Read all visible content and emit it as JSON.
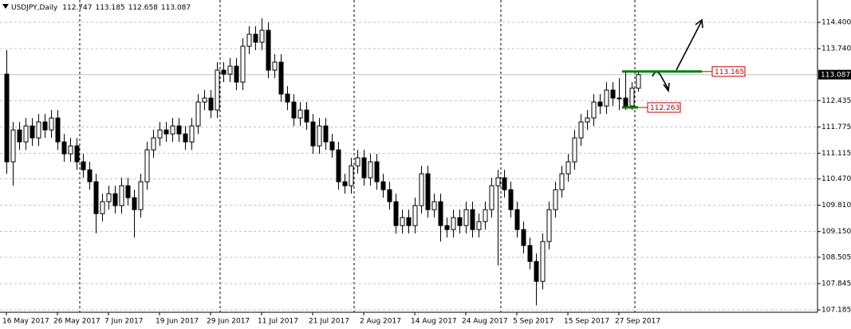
{
  "chart_data": {
    "type": "candlestick",
    "title": "USDJPY,Daily",
    "categories": [
      "16 May 2017",
      null,
      null,
      null,
      null,
      null,
      null,
      null,
      "26 May 2017",
      null,
      null,
      null,
      null,
      null,
      null,
      null,
      "7 Jun 2017",
      null,
      null,
      null,
      null,
      null,
      null,
      null,
      "19 Jun 2017",
      null,
      null,
      null,
      null,
      null,
      null,
      null,
      "29 Jun 2017",
      null,
      null,
      null,
      null,
      null,
      null,
      null,
      "11 Jul 2017",
      null,
      null,
      null,
      null,
      null,
      null,
      null,
      "21 Jul 2017",
      null,
      null,
      null,
      null,
      null,
      null,
      null,
      "2 Aug 2017",
      null,
      null,
      null,
      null,
      null,
      null,
      null,
      "14 Aug 2017",
      null,
      null,
      null,
      null,
      null,
      null,
      null,
      "24 Aug 2017",
      null,
      null,
      null,
      null,
      null,
      null,
      null,
      "5 Sep 2017",
      null,
      null,
      null,
      null,
      null,
      null,
      null,
      "15 Sep 2017",
      null,
      null,
      null,
      null,
      null,
      null,
      null,
      "27 Sep 2017",
      null,
      null,
      null
    ],
    "open": [
      113.1,
      110.9,
      111.7,
      111.4,
      111.8,
      111.5,
      111.9,
      111.7,
      112.0,
      111.4,
      111.1,
      111.3,
      110.9,
      110.7,
      110.4,
      109.6,
      109.9,
      110.1,
      109.8,
      110.3,
      110.0,
      109.7,
      110.4,
      111.2,
      111.5,
      111.7,
      111.6,
      111.8,
      111.6,
      111.4,
      111.8,
      112.4,
      112.5,
      112.2,
      113.2,
      113.1,
      113.3,
      112.9,
      113.8,
      114.1,
      113.9,
      114.2,
      113.2,
      113.4,
      112.6,
      112.4,
      112.0,
      112.2,
      111.9,
      111.3,
      111.8,
      111.4,
      111.2,
      110.4,
      110.3,
      110.8,
      111.0,
      110.5,
      110.9,
      110.4,
      110.2,
      109.9,
      109.3,
      109.5,
      109.3,
      109.8,
      110.6,
      109.7,
      109.9,
      109.3,
      109.2,
      109.5,
      109.3,
      109.7,
      109.2,
      109.4,
      109.7,
      110.3,
      110.5,
      110.2,
      109.7,
      109.2,
      108.8,
      108.4,
      107.9,
      108.9,
      109.7,
      110.2,
      110.6,
      110.9,
      111.5,
      111.9,
      112.0,
      112.4,
      112.3,
      112.7,
      112.5,
      112.5,
      112.3,
      112.747
    ],
    "high": [
      113.7,
      111.9,
      111.9,
      112.0,
      112.0,
      112.1,
      112.1,
      112.2,
      112.2,
      111.6,
      111.5,
      111.5,
      111.1,
      110.9,
      110.6,
      110.1,
      110.3,
      110.3,
      110.5,
      110.5,
      110.2,
      110.6,
      111.4,
      111.7,
      111.9,
      111.9,
      112.0,
      112.0,
      111.8,
      112.0,
      112.6,
      112.7,
      112.7,
      113.4,
      113.4,
      113.5,
      113.5,
      114.0,
      114.3,
      114.3,
      114.5,
      114.4,
      113.6,
      113.6,
      112.8,
      112.6,
      112.4,
      112.4,
      112.1,
      112.0,
      112.0,
      111.6,
      111.4,
      110.6,
      111.0,
      111.2,
      111.2,
      111.1,
      111.1,
      110.6,
      110.4,
      110.1,
      109.7,
      109.7,
      110.0,
      110.8,
      110.8,
      110.1,
      110.1,
      109.5,
      109.7,
      109.7,
      109.9,
      109.9,
      109.6,
      109.9,
      110.5,
      110.7,
      110.7,
      110.4,
      109.9,
      109.4,
      109.0,
      108.6,
      109.1,
      109.9,
      110.4,
      110.8,
      111.1,
      111.7,
      112.1,
      112.2,
      112.6,
      112.6,
      112.9,
      112.9,
      113.0,
      113.2,
      112.9,
      113.185
    ],
    "low": [
      110.6,
      110.3,
      111.2,
      111.2,
      111.3,
      111.3,
      111.5,
      111.5,
      111.2,
      110.9,
      110.9,
      110.7,
      110.5,
      110.2,
      109.1,
      109.4,
      109.7,
      109.6,
      109.6,
      109.8,
      109.0,
      109.5,
      110.2,
      111.0,
      111.3,
      111.4,
      111.4,
      111.4,
      111.2,
      111.2,
      111.6,
      112.2,
      112.0,
      112.0,
      112.9,
      112.9,
      112.7,
      112.7,
      113.6,
      113.7,
      113.7,
      113.0,
      113.0,
      112.4,
      112.2,
      111.8,
      111.8,
      111.7,
      111.1,
      111.1,
      111.2,
      111.0,
      110.2,
      110.1,
      110.1,
      110.6,
      110.3,
      110.3,
      110.2,
      110.0,
      109.7,
      109.1,
      109.1,
      109.1,
      109.1,
      109.6,
      109.5,
      109.5,
      108.9,
      109.0,
      109.0,
      109.1,
      109.1,
      109.0,
      109.0,
      109.2,
      109.5,
      108.3,
      110.0,
      109.5,
      109.0,
      108.6,
      108.2,
      107.3,
      107.7,
      108.7,
      109.5,
      110.0,
      110.4,
      110.7,
      111.3,
      111.7,
      111.8,
      112.1,
      112.1,
      112.3,
      112.2,
      112.2,
      112.2,
      112.658
    ],
    "close": [
      110.9,
      111.7,
      111.4,
      111.8,
      111.5,
      111.9,
      111.7,
      112.0,
      111.4,
      111.1,
      111.3,
      110.9,
      110.7,
      110.4,
      109.6,
      109.9,
      110.1,
      109.8,
      110.3,
      110.0,
      109.7,
      110.4,
      111.2,
      111.5,
      111.7,
      111.6,
      111.8,
      111.6,
      111.4,
      111.8,
      112.4,
      112.5,
      112.2,
      113.2,
      113.1,
      113.3,
      112.9,
      113.8,
      114.1,
      113.9,
      114.2,
      113.2,
      113.4,
      112.6,
      112.4,
      112.0,
      112.2,
      111.9,
      111.3,
      111.8,
      111.4,
      111.2,
      110.4,
      110.3,
      110.8,
      111.0,
      110.5,
      110.9,
      110.4,
      110.2,
      109.9,
      109.3,
      109.5,
      109.3,
      109.8,
      110.6,
      109.7,
      109.9,
      109.3,
      109.2,
      109.5,
      109.3,
      109.7,
      109.2,
      109.4,
      109.7,
      110.3,
      110.5,
      110.2,
      109.7,
      109.2,
      108.8,
      108.4,
      107.9,
      108.9,
      109.7,
      110.2,
      110.6,
      110.9,
      111.5,
      111.9,
      112.0,
      112.4,
      112.3,
      112.7,
      112.5,
      112.5,
      112.3,
      112.747,
      113.087
    ],
    "ylim": [
      107.125,
      114.96
    ],
    "yticks": [
      {
        "value": 114.4,
        "label": "114.400"
      },
      {
        "value": 113.74,
        "label": "113.740"
      },
      112.435,
      111.775,
      111.115,
      {
        "value": 110.47,
        "label": "110.470"
      },
      {
        "value": 109.81,
        "label": "109.810"
      },
      {
        "value": 109.15,
        "label": "109.150"
      },
      108.505,
      107.845,
      107.185
    ],
    "grid": true,
    "up_color": "#ffffff",
    "down_color": "#000000",
    "levels": [
      {
        "value": 113.165,
        "color": "#008000"
      },
      {
        "value": 112.263,
        "color": "#008000"
      }
    ],
    "price_line_color": "#c0c0c0"
  }
}
